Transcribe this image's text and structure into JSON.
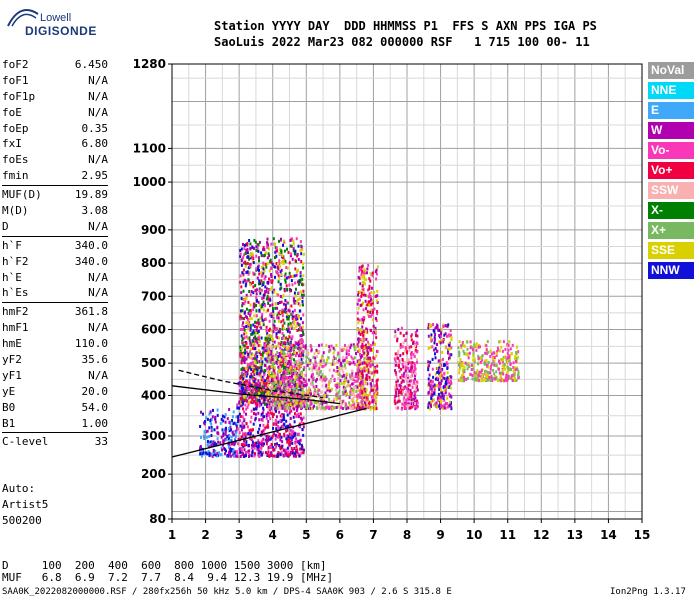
{
  "logo": {
    "line1": "Lowell",
    "line2": "DIGISONDE"
  },
  "header": {
    "line1": "Station YYYY DAY  DDD HHMMSS P1  FFS S AXN PPS IGA PS",
    "line2": "SaoLuis 2022 Mar23 082 000000 RSF   1 715 100 00- 11"
  },
  "params": [
    {
      "label": "foF2",
      "value": "6.450"
    },
    {
      "label": "foF1",
      "value": "N/A"
    },
    {
      "label": "foF1p",
      "value": "N/A"
    },
    {
      "label": "foE",
      "value": "N/A"
    },
    {
      "label": "foEp",
      "value": "0.35"
    },
    {
      "label": "fxI",
      "value": "6.80"
    },
    {
      "label": "foEs",
      "value": "N/A"
    },
    {
      "label": "fmin",
      "value": "2.95"
    },
    {
      "label": "MUF(D)",
      "value": "19.89"
    },
    {
      "label": "M(D)",
      "value": "3.08"
    },
    {
      "label": "D",
      "value": "N/A"
    },
    {
      "label": "h`F",
      "value": "340.0"
    },
    {
      "label": "h`F2",
      "value": "340.0"
    },
    {
      "label": "h`E",
      "value": "N/A"
    },
    {
      "label": "h`Es",
      "value": "N/A"
    },
    {
      "label": "hmF2",
      "value": "361.8"
    },
    {
      "label": "hmF1",
      "value": "N/A"
    },
    {
      "label": "hmE",
      "value": "110.0"
    },
    {
      "label": "yF2",
      "value": "35.6"
    },
    {
      "label": "yF1",
      "value": "N/A"
    },
    {
      "label": "yE",
      "value": "20.0"
    },
    {
      "label": "B0",
      "value": "54.0"
    },
    {
      "label": "B1",
      "value": "1.00"
    },
    {
      "label": "C-level",
      "value": "33"
    }
  ],
  "auto": {
    "line1": "Auto:",
    "line2": "Artist5",
    "line3": "500200"
  },
  "legend": [
    {
      "label": "NoVal",
      "color": "#9c9c9c"
    },
    {
      "label": "NNE",
      "color": "#00d8f8"
    },
    {
      "label": "E",
      "color": "#40a8f8"
    },
    {
      "label": "W",
      "color": "#b000b0"
    },
    {
      "label": "Vo-",
      "color": "#f838b8"
    },
    {
      "label": "Vo+",
      "color": "#f00040"
    },
    {
      "label": "SSW",
      "color": "#f8b0b0"
    },
    {
      "label": "X-",
      "color": "#008000"
    },
    {
      "label": "X+",
      "color": "#78b860"
    },
    {
      "label": "SSE",
      "color": "#d8d000"
    },
    {
      "label": "NNW",
      "color": "#1010d8"
    }
  ],
  "footer": {
    "line1": "D     100  200  400  600  800 1000 1500 3000 [km]",
    "line2": "MUF   6.8  6.9  7.2  7.7  8.4  9.4 12.3 19.9 [MHz]",
    "file": "SAA0K_2022082000000.RSF / 280fx256h 50 kHz 5.0 km / DPS-4 SAA0K 903 / 2.6 S 315.8 E",
    "version": "Ion2Png 1.3.17"
  },
  "chart_data": {
    "type": "scatter",
    "title": "",
    "xlabel": "",
    "ylabel": "",
    "xlim": [
      1,
      15
    ],
    "ylim": [
      80,
      1280
    ],
    "y_scale": "nonlinear",
    "x_ticks": [
      "1",
      "2",
      "3",
      "4",
      "5",
      "6",
      "7",
      "8",
      "9",
      "10",
      "11",
      "12",
      "13",
      "14",
      "15"
    ],
    "y_ticks": [
      "1280",
      "1100",
      "1000",
      "900",
      "800",
      "700",
      "600",
      "500",
      "400",
      "300",
      "200",
      "80"
    ],
    "grid": true,
    "traces": [
      {
        "name": "",
        "style": "solid",
        "x": [
          1.0,
          6.8
        ],
        "y": [
          245,
          368
        ]
      },
      {
        "name": "",
        "style": "solid",
        "x": [
          1.0,
          3.0,
          5.0,
          6.0
        ],
        "y": [
          430,
          405,
          390,
          380
        ]
      },
      {
        "name": "",
        "style": "dashed",
        "x": [
          1.2,
          2.5,
          4.0,
          5.5
        ],
        "y": [
          478,
          445,
          415,
          395
        ]
      }
    ],
    "echo_clusters": [
      {
        "x": [
          1.8,
          2.9
        ],
        "y": [
          250,
          370
        ],
        "colors": [
          "#1010d8",
          "#b000b0",
          "#40a8f8"
        ]
      },
      {
        "x": [
          2.9,
          4.9
        ],
        "y": [
          250,
          450
        ],
        "colors": [
          "#b000b0",
          "#f838b8",
          "#f00040",
          "#1010d8"
        ]
      },
      {
        "x": [
          3.0,
          4.9
        ],
        "y": [
          380,
          880
        ],
        "colors": [
          "#b000b0",
          "#f838b8",
          "#f00040",
          "#1010d8",
          "#d8d000",
          "#008000"
        ]
      },
      {
        "x": [
          3.8,
          6.7
        ],
        "y": [
          370,
          560
        ],
        "colors": [
          "#d8d000",
          "#f8b0b0",
          "#f838b8",
          "#b000b0",
          "#78b860"
        ]
      },
      {
        "x": [
          6.5,
          7.1
        ],
        "y": [
          370,
          800
        ],
        "colors": [
          "#b000b0",
          "#f838b8",
          "#f00040",
          "#d8d000"
        ]
      },
      {
        "x": [
          7.6,
          8.3
        ],
        "y": [
          370,
          610
        ],
        "colors": [
          "#f838b8",
          "#b000b0",
          "#f00040",
          "#f8b0b0"
        ]
      },
      {
        "x": [
          8.6,
          9.3
        ],
        "y": [
          370,
          620
        ],
        "colors": [
          "#b000b0",
          "#f838b8",
          "#1010d8",
          "#d8d000"
        ]
      },
      {
        "x": [
          9.5,
          11.3
        ],
        "y": [
          450,
          570
        ],
        "colors": [
          "#d8d000",
          "#78b860",
          "#f838b8"
        ]
      }
    ]
  }
}
